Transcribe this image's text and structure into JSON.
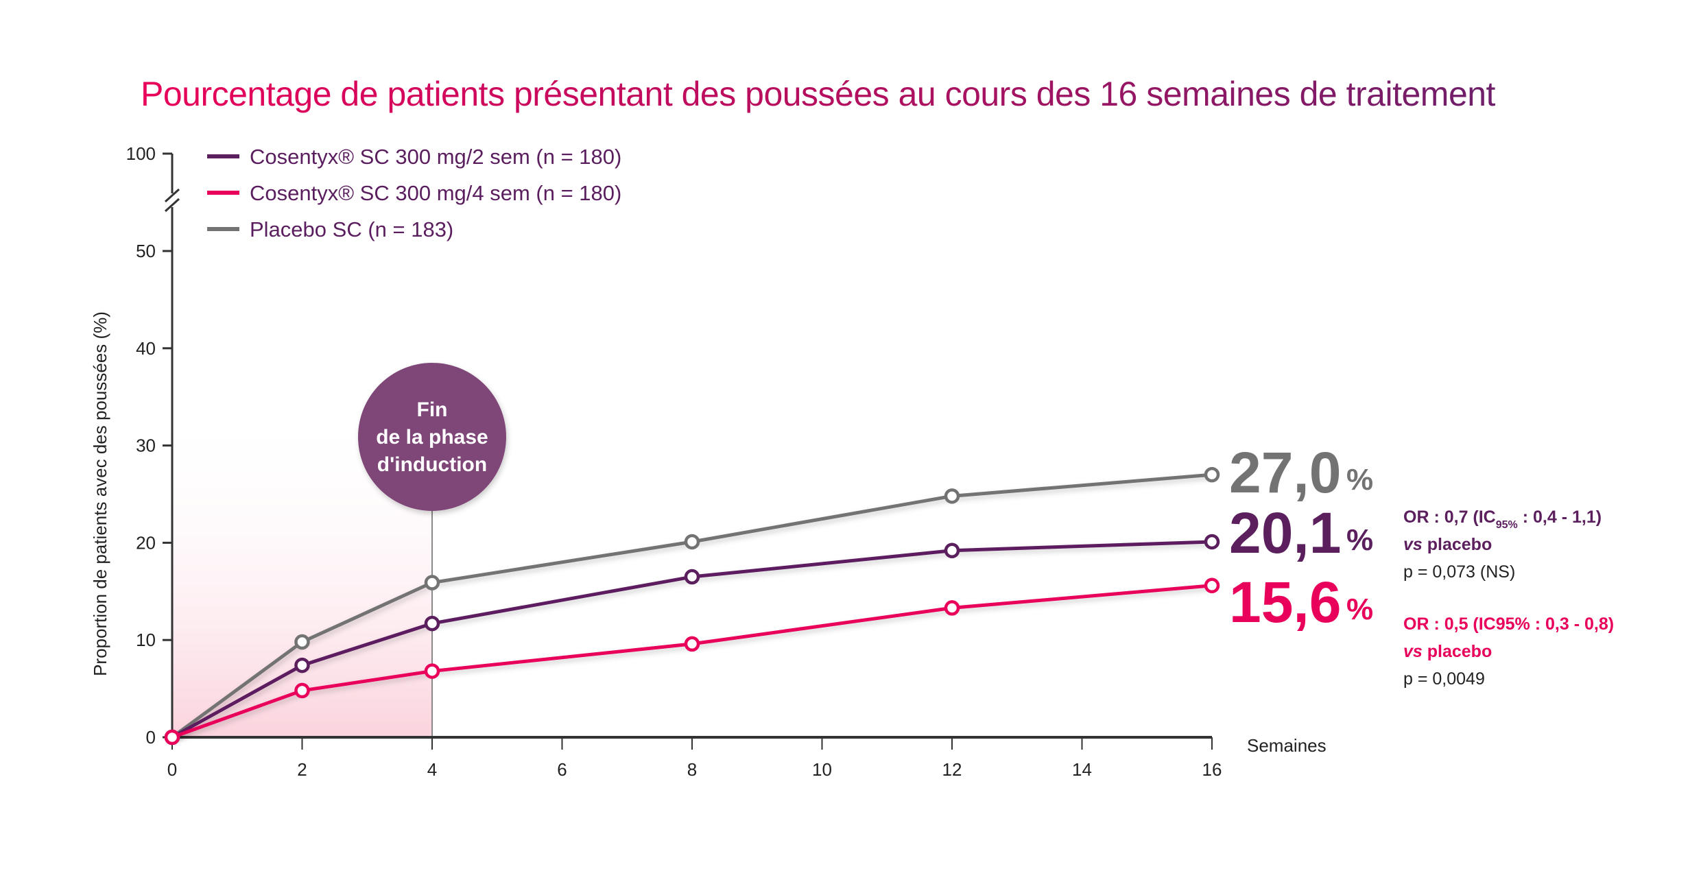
{
  "chart_data": {
    "type": "line",
    "title": "Pourcentage de patients présentant des poussées au cours des 16 semaines de traitement",
    "xlabel": "Semaines",
    "ylabel": "Proportion de patients avec des poussées (%)",
    "x": [
      0,
      2,
      4,
      8,
      12,
      16
    ],
    "xticks": [
      0,
      2,
      4,
      6,
      8,
      10,
      12,
      14,
      16
    ],
    "yticks": [
      0,
      10,
      20,
      30,
      40,
      50,
      100
    ],
    "ylim": [
      0,
      100
    ],
    "y_axis_break": "between 50 and 100",
    "xlim": [
      0,
      16
    ],
    "legend_position": "top-left",
    "series": [
      {
        "name": "Cosentyx® SC 300 mg/2 sem (n = 180)",
        "color": "#5c1f5e",
        "values": [
          0,
          7.4,
          11.7,
          16.5,
          19.2,
          20.1
        ]
      },
      {
        "name": "Cosentyx® SC 300 mg/4 sem (n = 180)",
        "color": "#e8005a",
        "values": [
          0,
          4.8,
          6.8,
          9.6,
          13.3,
          15.6
        ]
      },
      {
        "name": "Placebo SC (n = 183)",
        "color": "#737373",
        "values": [
          0,
          9.8,
          15.9,
          20.1,
          24.8,
          27.0
        ]
      }
    ],
    "shaded_region": {
      "x_from": 0,
      "x_to": 4,
      "label": [
        "Fin",
        "de la phase",
        "d'induction"
      ]
    },
    "end_labels": [
      {
        "value": "27,0",
        "unit": "%",
        "color": "#737373"
      },
      {
        "value": "20,1",
        "unit": "%",
        "color": "#5c1f5e"
      },
      {
        "value": "15,6",
        "unit": "%",
        "color": "#e8005a"
      }
    ],
    "annotations": [
      {
        "color": "#5c1f5e",
        "or_prefix": "OR : 0,7 (IC",
        "or_sub": "95%",
        "or_suffix": " : 0,4 - 1,1)",
        "vs_italic": "vs",
        "vs_rest": " placebo",
        "p": "p = 0,073 (NS)"
      },
      {
        "color": "#e8005a",
        "or_prefix": "OR : 0,5 (IC95% : 0,3 - 0,8)",
        "or_sub": "",
        "or_suffix": "",
        "vs_italic": "vs",
        "vs_rest": " placebo",
        "p": "p = 0,0049"
      }
    ]
  },
  "colors": {
    "bubble": "#7f4678",
    "shade": "#fbd9e1",
    "axis": "#333333"
  }
}
